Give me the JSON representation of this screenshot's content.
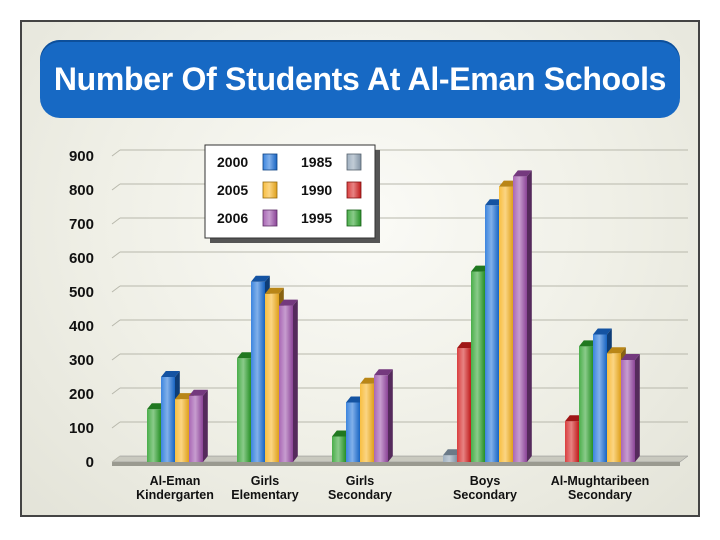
{
  "title": "Number Of Students At Al-Eman Schools",
  "colors": {
    "1985": "#8fa2b5",
    "1990": "#d41d1d",
    "1995": "#2aa02a",
    "2000": "#1a6fd8",
    "2005": "#f7b21e",
    "2006": "#9a4ca8",
    "title_bg": "#1769c4"
  },
  "chart_data": {
    "type": "bar",
    "title": "Number Of Students At Al-Eman Schools",
    "xlabel": "",
    "ylabel": "",
    "ylim": [
      0,
      900
    ],
    "yticks": [
      0,
      100,
      200,
      300,
      400,
      500,
      600,
      700,
      800,
      900
    ],
    "grid": true,
    "legend_placement": "top-left",
    "categories": [
      [
        "Al-Eman",
        "Kindergarten"
      ],
      [
        "Girls",
        "Elementary"
      ],
      [
        "Girls",
        "Secondary"
      ],
      [
        "Boys",
        "Secondary"
      ],
      [
        "Al-Mughtaribeen",
        "Secondary"
      ]
    ],
    "series": [
      {
        "name": "1985",
        "values": [
          null,
          null,
          null,
          20,
          null
        ]
      },
      {
        "name": "1990",
        "values": [
          null,
          null,
          null,
          335,
          120
        ]
      },
      {
        "name": "1995",
        "values": [
          155,
          305,
          75,
          560,
          340
        ]
      },
      {
        "name": "2000",
        "values": [
          250,
          530,
          175,
          755,
          375
        ]
      },
      {
        "name": "2005",
        "values": [
          185,
          495,
          230,
          810,
          320
        ]
      },
      {
        "name": "2006",
        "values": [
          195,
          460,
          255,
          840,
          300
        ]
      }
    ],
    "legend": [
      {
        "label": "2000",
        "series": "2000"
      },
      {
        "label": "1985",
        "series": "1985"
      },
      {
        "label": "2005",
        "series": "2005"
      },
      {
        "label": "1990",
        "series": "1990"
      },
      {
        "label": "2006",
        "series": "2006"
      },
      {
        "label": "1995",
        "series": "1995"
      }
    ]
  }
}
